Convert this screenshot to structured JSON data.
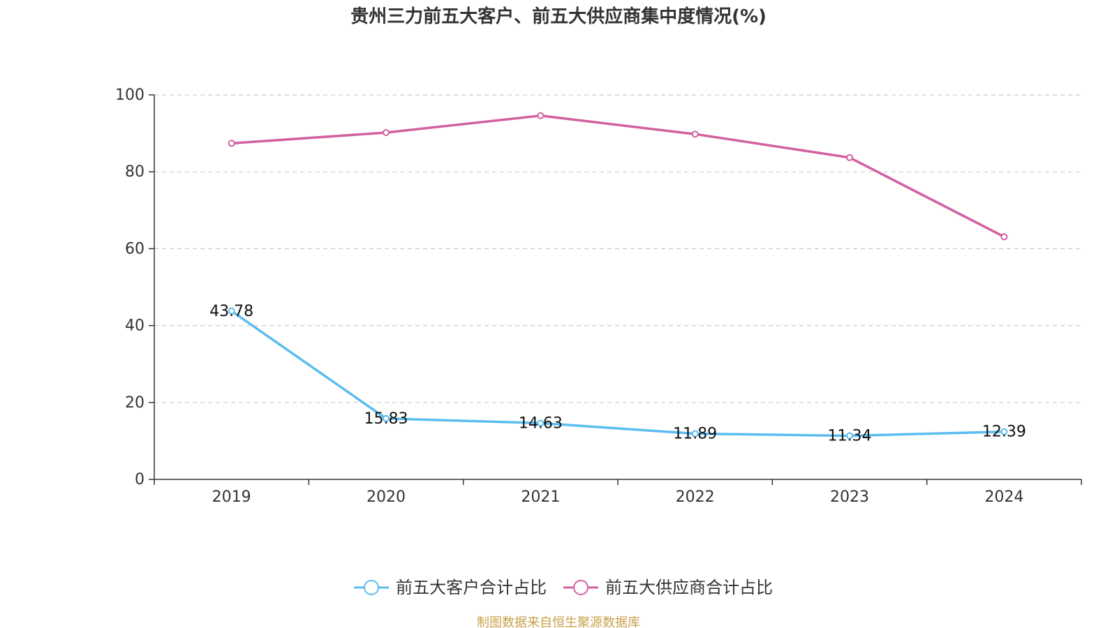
{
  "chart_data": {
    "type": "line",
    "title": "贵州三力前五大客户、前五大供应商集中度情况(%)",
    "categories": [
      "2019",
      "2020",
      "2021",
      "2022",
      "2023",
      "2024"
    ],
    "ylim": [
      0,
      100
    ],
    "yticks": [
      "0",
      "20",
      "40",
      "60",
      "80",
      "100"
    ],
    "grid": true,
    "legend_position": "bottom",
    "series": [
      {
        "name": "前五大客户合计占比",
        "color": "#5bbcf0",
        "values": [
          43.78,
          15.83,
          14.63,
          11.89,
          11.34,
          12.39
        ],
        "labels": [
          "43.78",
          "15.83",
          "14.63",
          "11.89",
          "11.34",
          "12.39"
        ]
      },
      {
        "name": "前五大供应商合计占比",
        "color": "#d2609f",
        "values": [
          87.4,
          90.2,
          94.6,
          89.8,
          83.7,
          63.1
        ],
        "labels": []
      }
    ]
  },
  "source_text": "制图数据来自恒生聚源数据库"
}
